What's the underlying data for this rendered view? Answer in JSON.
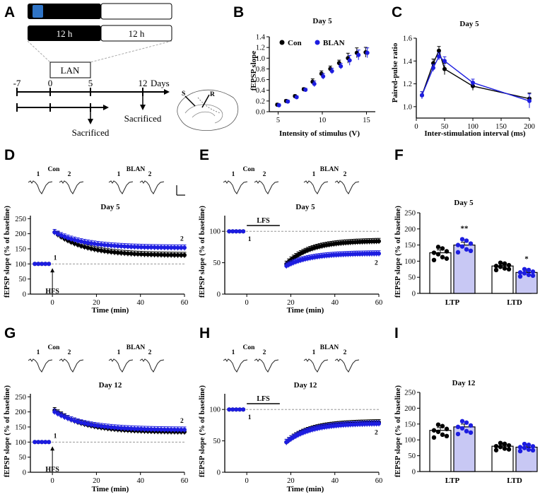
{
  "colors": {
    "con": "#000000",
    "blan": "#1d1de0",
    "blan_fill": "#c8c8f4",
    "line_light": "#c8c8c8"
  },
  "panels": [
    "A",
    "B",
    "C",
    "D",
    "E",
    "F",
    "G",
    "H",
    "I"
  ],
  "panel_a": {
    "bar_1": "12 h",
    "bar_2": "12 h",
    "lan_label": "LAN",
    "timeline_ticks": [
      "-7",
      "0",
      "5",
      "12"
    ],
    "days_label": "Days",
    "sacrificed_1": "Sacrificed",
    "sacrificed_2": "Sacrificed",
    "electrode_s": "S",
    "electrode_r": "R"
  },
  "chart_data": [
    {
      "id": "B",
      "type": "scatter",
      "title": "Day 5",
      "xlabel": "Intensity of stimulus (V)",
      "ylabel": "fEPSP slope",
      "xlim": [
        4,
        16
      ],
      "ylim": [
        0,
        1.4
      ],
      "xticks": [
        "5",
        "10",
        "15"
      ],
      "yticks": [
        "0.0",
        "0.2",
        "0.4",
        "0.6",
        "0.8",
        "1.0",
        "1.2",
        "1.4"
      ],
      "x": [
        5,
        6,
        7,
        8,
        9,
        10,
        11,
        12,
        13,
        14,
        15
      ],
      "series": [
        {
          "name": "Con",
          "values": [
            0.13,
            0.2,
            0.29,
            0.42,
            0.56,
            0.71,
            0.8,
            0.91,
            1.0,
            1.1,
            1.11
          ]
        },
        {
          "name": "BLAN",
          "values": [
            0.12,
            0.19,
            0.27,
            0.41,
            0.52,
            0.66,
            0.76,
            0.85,
            0.96,
            1.06,
            1.1
          ]
        }
      ]
    },
    {
      "id": "C",
      "type": "line",
      "title": "Day 5",
      "xlabel": "Inter-stimulation interval (ms)",
      "ylabel": "Paired-pulse ratio",
      "xlim": [
        0,
        200
      ],
      "ylim": [
        0.9,
        1.6
      ],
      "xticks": [
        "0",
        "50",
        "100",
        "150",
        "200"
      ],
      "yticks": [
        "1.0",
        "1.2",
        "1.4",
        "1.6"
      ],
      "x": [
        10,
        30,
        40,
        50,
        100,
        200
      ],
      "series": [
        {
          "name": "Con",
          "values": [
            1.1,
            1.38,
            1.49,
            1.33,
            1.18,
            1.07
          ]
        },
        {
          "name": "BLAN",
          "values": [
            1.1,
            1.34,
            1.44,
            1.4,
            1.21,
            1.05
          ]
        }
      ]
    },
    {
      "id": "D",
      "type": "scatter",
      "title": "Day 5",
      "xlabel": "Time (min)",
      "ylabel": "fEPSP slope (% of baseline)",
      "xlim": [
        -10,
        60
      ],
      "ylim": [
        0,
        260
      ],
      "xticks": [
        "0",
        "20",
        "40",
        "60"
      ],
      "yticks": [
        "0",
        "50",
        "100",
        "150",
        "200",
        "250"
      ],
      "baseline": 100,
      "stim_label": "HFS",
      "marker_1": "1",
      "marker_2": "2",
      "trace_labels": [
        "Con",
        "BLAN"
      ],
      "trace_numbers": [
        "1",
        "2",
        "1",
        "2"
      ],
      "series": [
        {
          "name": "Con",
          "baseline_n": 5,
          "start": 205,
          "end": 128
        },
        {
          "name": "BLAN",
          "baseline_n": 5,
          "start": 205,
          "end": 153
        }
      ]
    },
    {
      "id": "E",
      "type": "scatter",
      "title": "Day 5",
      "xlabel": "Time (min)",
      "ylabel": "fEPSP slope (% of baseline)",
      "xlim": [
        -10,
        60
      ],
      "ylim": [
        0,
        125
      ],
      "xticks": [
        "0",
        "20",
        "40",
        "60"
      ],
      "yticks": [
        "0",
        "50",
        "100"
      ],
      "baseline": 100,
      "stim_label": "LFS",
      "marker_1": "1",
      "marker_2": "2",
      "trace_labels": [
        "Con",
        "BLAN"
      ],
      "trace_numbers": [
        "1",
        "2",
        "1",
        "2"
      ],
      "series": [
        {
          "name": "Con",
          "baseline_n": 5,
          "start": 48,
          "end": 85
        },
        {
          "name": "BLAN",
          "baseline_n": 5,
          "start": 45,
          "end": 65
        }
      ]
    },
    {
      "id": "F",
      "type": "bar",
      "title": "Day 5",
      "ylabel": "fEPSP slope (% of baseline)",
      "categories": [
        "LTP",
        "LTD"
      ],
      "ylim": [
        0,
        250
      ],
      "yticks": [
        "0",
        "50",
        "100",
        "150",
        "200",
        "250"
      ],
      "series": [
        {
          "name": "Con",
          "values": [
            126,
            85
          ]
        },
        {
          "name": "BLAN",
          "values": [
            150,
            65
          ]
        }
      ],
      "significance": [
        "**",
        "*"
      ]
    },
    {
      "id": "G",
      "type": "scatter",
      "title": "Day 12",
      "xlabel": "Time (min)",
      "ylabel": "fEPSP slope (% of baseline)",
      "xlim": [
        -10,
        60
      ],
      "ylim": [
        0,
        260
      ],
      "xticks": [
        "0",
        "20",
        "40",
        "60"
      ],
      "yticks": [
        "0",
        "50",
        "100",
        "150",
        "200",
        "250"
      ],
      "baseline": 100,
      "stim_label": "HFS",
      "marker_1": "1",
      "marker_2": "2",
      "trace_labels": [
        "Con",
        "BLAN"
      ],
      "trace_numbers": [
        "1",
        "2",
        "1",
        "2"
      ],
      "series": [
        {
          "name": "Con",
          "baseline_n": 5,
          "start": 205,
          "end": 133
        },
        {
          "name": "BLAN",
          "baseline_n": 5,
          "start": 200,
          "end": 140
        }
      ]
    },
    {
      "id": "H",
      "type": "scatter",
      "title": "Day 12",
      "xlabel": "Time (min)",
      "ylabel": "fEPSP slope (% of baseline)",
      "xlim": [
        -10,
        60
      ],
      "ylim": [
        0,
        125
      ],
      "xticks": [
        "0",
        "20",
        "40",
        "60"
      ],
      "yticks": [
        "0",
        "50",
        "100"
      ],
      "baseline": 100,
      "stim_label": "LFS",
      "marker_1": "1",
      "marker_2": "2",
      "trace_labels": [
        "Con",
        "BLAN"
      ],
      "trace_numbers": [
        "1",
        "2",
        "1",
        "2"
      ],
      "series": [
        {
          "name": "Con",
          "baseline_n": 5,
          "start": 48,
          "end": 80
        },
        {
          "name": "BLAN",
          "baseline_n": 5,
          "start": 48,
          "end": 78
        }
      ]
    },
    {
      "id": "I",
      "type": "bar",
      "title": "Day 12",
      "ylabel": "fEPSP slope (% of baseline)",
      "categories": [
        "LTP",
        "LTD"
      ],
      "ylim": [
        0,
        250
      ],
      "yticks": [
        "0",
        "50",
        "100",
        "150",
        "200",
        "250"
      ],
      "series": [
        {
          "name": "Con",
          "values": [
            130,
            80
          ]
        },
        {
          "name": "BLAN",
          "values": [
            141,
            77
          ]
        }
      ],
      "significance": [
        "",
        ""
      ]
    }
  ]
}
